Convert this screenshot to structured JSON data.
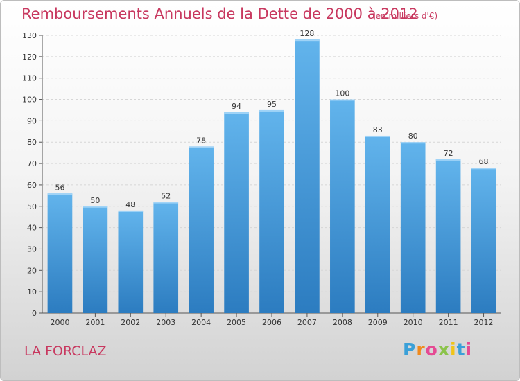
{
  "title": "Remboursements Annuels de la Dette de 2000 à 2012",
  "subtitle": "(en milliers d'€)",
  "place": "LA FORCLAZ",
  "logo": {
    "letters": [
      "P",
      "r",
      "o",
      "x",
      "i",
      "t",
      "i"
    ],
    "colors": [
      "#3aa0d8",
      "#f08a1d",
      "#e54a93",
      "#8bc34a",
      "#f0c419",
      "#3aa0d8",
      "#e54a93"
    ]
  },
  "colors": {
    "bar_top": "#62b4ec",
    "bar_bottom": "#2c7cc0",
    "text_accent": "#c8385f"
  },
  "chart_data": {
    "type": "bar",
    "categories": [
      "2000",
      "2001",
      "2002",
      "2003",
      "2004",
      "2005",
      "2006",
      "2007",
      "2008",
      "2009",
      "2010",
      "2011",
      "2012"
    ],
    "values": [
      56,
      50,
      48,
      52,
      78,
      94,
      95,
      128,
      100,
      83,
      80,
      72,
      68
    ],
    "ylim": [
      0,
      130
    ],
    "yticks": [
      0,
      10,
      20,
      30,
      40,
      50,
      60,
      70,
      80,
      90,
      100,
      110,
      120,
      130
    ],
    "grid": true,
    "xlabel": "",
    "ylabel": ""
  }
}
